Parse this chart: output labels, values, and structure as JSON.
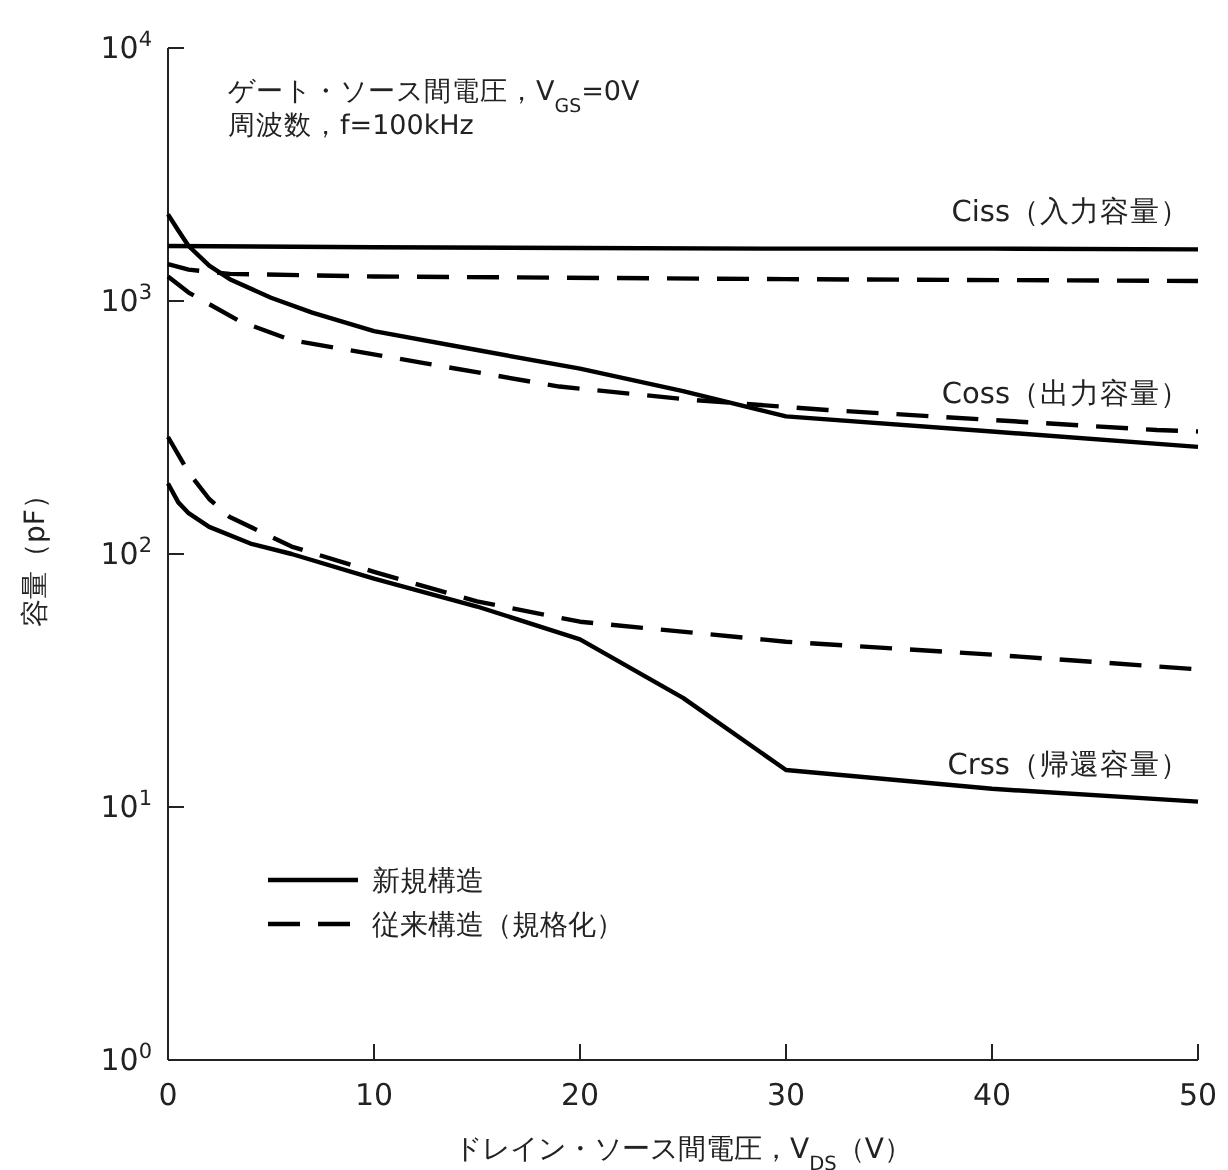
{
  "chart_data": {
    "type": "line",
    "xlabel": "ドレイン・ソース間電圧，V$_{DS}$（V）",
    "ylabel": "容量（pF）",
    "xlim": [
      0,
      50
    ],
    "xticks": [
      0,
      10,
      20,
      30,
      40,
      50
    ],
    "ylim": [
      1,
      10000
    ],
    "yticks": [
      {
        "value": 1,
        "label": "10$^{0}$"
      },
      {
        "value": 10,
        "label": "10$^{1}$"
      },
      {
        "value": 100,
        "label": "10$^{2}$"
      },
      {
        "value": 1000,
        "label": "10$^{3}$"
      },
      {
        "value": 10000,
        "label": "10$^{4}$"
      }
    ],
    "log": true,
    "grid": false,
    "legend": "bottom left",
    "marker": "none",
    "series": [
      {
        "name": "新規構造",
        "color": "#000000",
        "line_style": "solid",
        "x": [
          0,
          10,
          20,
          30,
          40,
          50
        ],
        "values": [
          1650,
          1630,
          1620,
          1610,
          1610,
          1600
        ]
      },
      {
        "color": "#000000",
        "line_style": "solid",
        "x": [
          0,
          0.5,
          1,
          2,
          3,
          5,
          7,
          10,
          15,
          20,
          25,
          30,
          40,
          50
        ],
        "values": [
          2200,
          1900,
          1650,
          1380,
          1220,
          1030,
          900,
          760,
          640,
          540,
          440,
          350,
          305,
          265
        ]
      },
      {
        "color": "#000000",
        "line_style": "solid",
        "x": [
          0,
          0.5,
          1,
          2,
          4,
          6,
          10,
          15,
          20,
          25,
          30,
          40,
          50
        ],
        "values": [
          190,
          160,
          145,
          128,
          110,
          100,
          80,
          62,
          46,
          27,
          14,
          11.8,
          10.5
        ]
      },
      {
        "name": "従来構造（規格化）",
        "color": "#000000",
        "line_style": "dashed",
        "x": [
          0,
          1,
          3,
          10,
          30,
          50
        ],
        "values": [
          1400,
          1330,
          1280,
          1250,
          1220,
          1200
        ]
      },
      {
        "color": "#000000",
        "line_style": "dashed",
        "x": [
          0,
          1,
          3.5,
          6,
          12.5,
          19,
          25.5,
          32,
          48,
          50
        ],
        "values": [
          1250,
          1080,
          830,
          700,
          567,
          459,
          406,
          371,
          309,
          305
        ]
      },
      {
        "color": "#000000",
        "line_style": "dashed",
        "x": [
          0,
          1,
          2,
          3,
          6,
          10,
          15,
          20,
          30,
          40,
          50
        ],
        "values": [
          290,
          210,
          165,
          140,
          107,
          85,
          65,
          54,
          45,
          40,
          35
        ]
      }
    ],
    "annotations": [
      "ゲート・ソース間電圧，V$_{GS}$=0V",
      "周波数，f=100kHz",
      "Ciss（入力容量）",
      "Coss（出力容量）",
      "Crss（帰還容量）"
    ]
  }
}
